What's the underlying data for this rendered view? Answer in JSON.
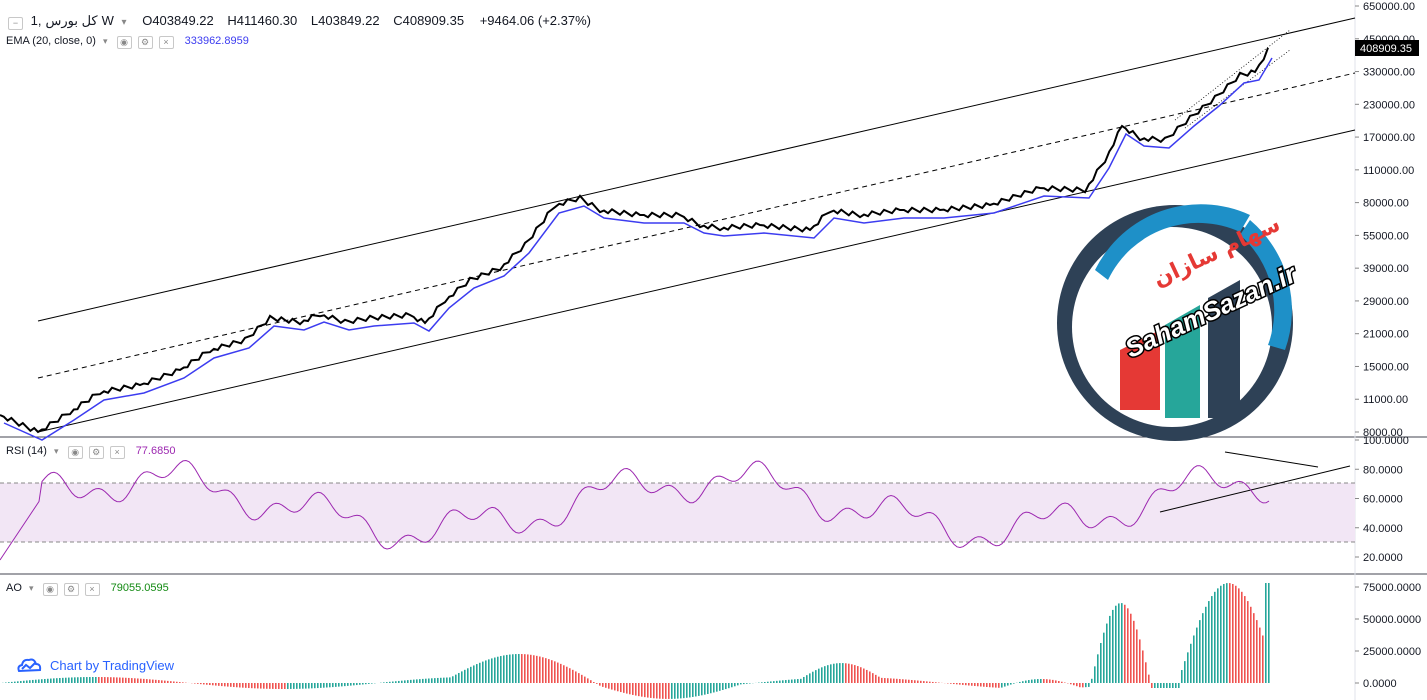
{
  "header": {
    "symbol": "کل بورس",
    "interval": "1W",
    "open_label": "O",
    "open": "403849.22",
    "high_label": "H",
    "high": "411460.30",
    "low_label": "L",
    "low": "403849.22",
    "close_label": "C",
    "close": "408909.35",
    "change": "+9464.06 (+2.37%)"
  },
  "ema": {
    "label": "EMA (20, close, 0)",
    "value": "333962.8959",
    "color": "#3c3cf0"
  },
  "rsi": {
    "label": "RSI (14)",
    "value": "77.6850",
    "color": "#9c27b0"
  },
  "ao": {
    "label": "AO",
    "value": "79055.0595",
    "color": "#138a13"
  },
  "watermark": "Chart by TradingView",
  "price_badge": "408909.35",
  "logo": {
    "text_fa": "سهام سازان",
    "text_en": "SahamSazan.ir"
  },
  "axes": {
    "price_ticks": [
      "650000.00",
      "450000.00",
      "330000.00",
      "230000.00",
      "170000.00",
      "110000.00",
      "80000.00",
      "55000.00",
      "39000.00",
      "29000.00",
      "21000.00",
      "15000.00",
      "11000.00",
      "8000.00"
    ],
    "rsi_ticks": [
      "100.0000",
      "80.0000",
      "60.0000",
      "40.0000",
      "20.0000"
    ],
    "ao_ticks": [
      "75000.0000",
      "50000.0000",
      "25000.0000",
      "0.0000"
    ]
  },
  "colors": {
    "up": "#26a69a",
    "down": "#ef5350",
    "rsi_band": "#f2e6f5",
    "logo_navy": "#2e4156",
    "logo_blue": "#1e90c8",
    "logo_red": "#e53935",
    "logo_green": "#26a69a"
  }
}
